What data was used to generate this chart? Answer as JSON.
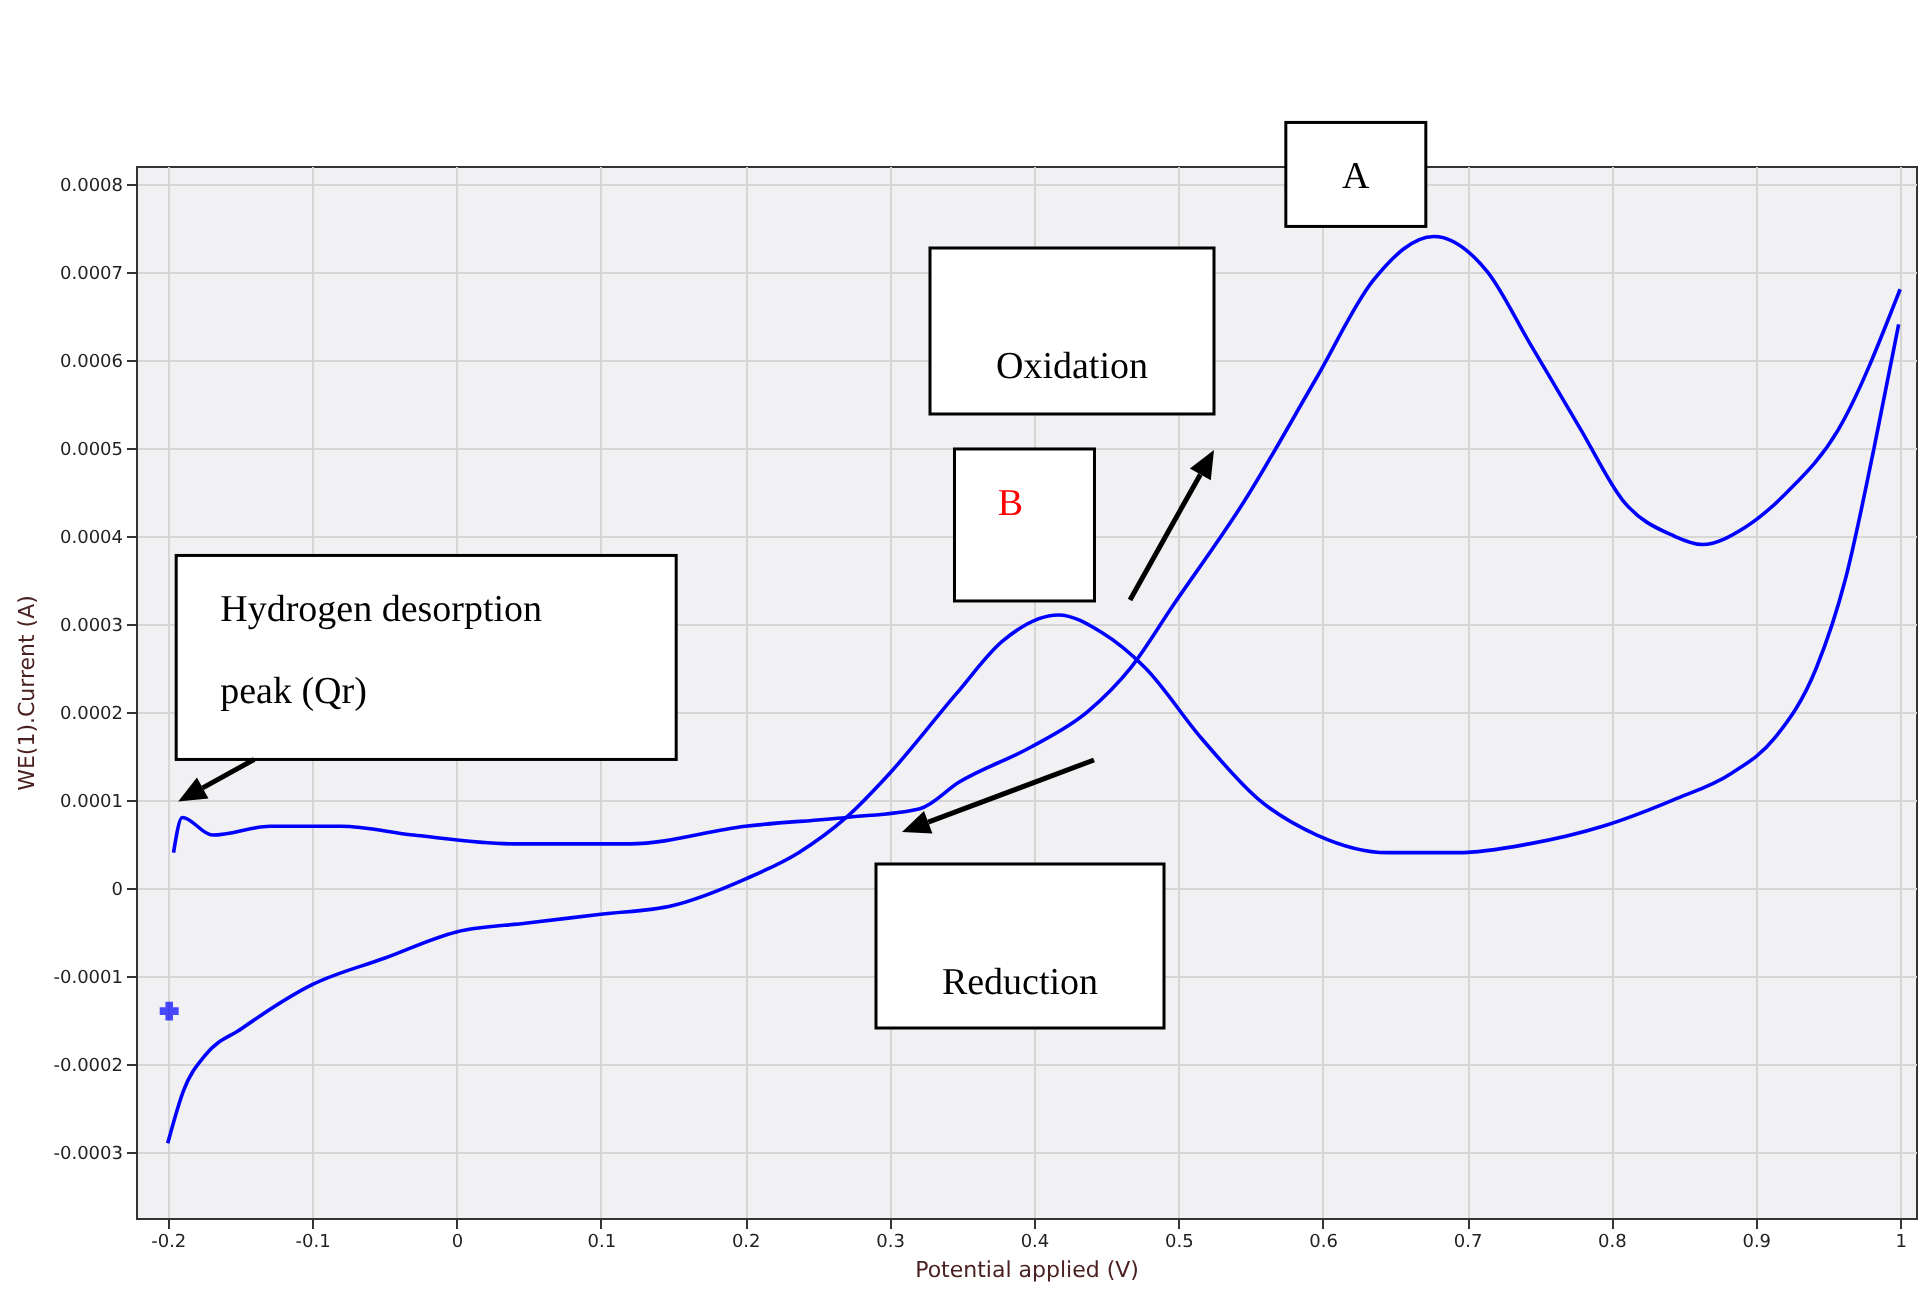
{
  "chart_data": {
    "type": "line",
    "xlabel": "Potential applied (V)",
    "ylabel": "WE(1).Current (A)",
    "xlim": [
      -0.222,
      1.011
    ],
    "ylim": [
      -0.000375,
      0.00082
    ],
    "xticks": [
      -0.2,
      -0.1,
      0,
      0.1,
      0.2,
      0.3,
      0.4,
      0.5,
      0.6,
      0.7,
      0.8,
      0.9,
      1
    ],
    "yticks": [
      -0.0003,
      -0.0002,
      -0.0001,
      0,
      0.0001,
      0.0002,
      0.0003,
      0.0004,
      0.0005,
      0.0006,
      0.0007,
      0.0008
    ],
    "grid": true,
    "series": [
      {
        "color": "#0000ff",
        "x": [
          -0.196,
          -0.19,
          -0.169,
          -0.129,
          -0.08,
          -0.03,
          0.039,
          0.12,
          0.2,
          0.27,
          0.321,
          0.348,
          0.398,
          0.437,
          0.467,
          0.496,
          0.546,
          0.596,
          0.635,
          0.677,
          0.714,
          0.743,
          0.779,
          0.808,
          0.843,
          0.863,
          0.893,
          0.922,
          0.957,
          1.0
        ],
        "values": [
          4e-05,
          8e-05,
          6e-05,
          7e-05,
          7e-05,
          6e-05,
          5e-05,
          5e-05,
          7e-05,
          8e-05,
          9e-05,
          0.00012,
          0.00016,
          0.0002,
          0.00025,
          0.00032,
          0.00044,
          0.00058,
          0.00069,
          0.00074,
          0.0007,
          0.00062,
          0.00052,
          0.00044,
          0.0004,
          0.00039,
          0.00041,
          0.00045,
          0.00052,
          0.00068
        ]
      },
      {
        "color": "#0000ff",
        "x": [
          -0.2,
          -0.189,
          -0.174,
          -0.149,
          -0.1,
          -0.05,
          0,
          0.049,
          0.1,
          0.15,
          0.2,
          0.237,
          0.27,
          0.3,
          0.346,
          0.378,
          0.417,
          0.447,
          0.477,
          0.516,
          0.556,
          0.596,
          0.645,
          0.694,
          0.743,
          0.794,
          0.843,
          0.883,
          0.913,
          0.942,
          0.962,
          0.982,
          0.999
        ],
        "values": [
          -0.00029,
          -0.00023,
          -0.00019,
          -0.00016,
          -0.00011,
          -8e-05,
          -5e-05,
          -4e-05,
          -3e-05,
          -2e-05,
          1e-05,
          4e-05,
          8e-05,
          0.00013,
          0.00022,
          0.00028,
          0.00031,
          0.00029,
          0.00025,
          0.00017,
          0.0001,
          6e-05,
          4e-05,
          4e-05,
          5e-05,
          7e-05,
          0.0001,
          0.00013,
          0.00017,
          0.00025,
          0.00035,
          0.0005,
          0.00064
        ]
      },
      {
        "type": "scatter",
        "marker": "cross",
        "color": "#0000ff",
        "x": [
          -0.199
        ],
        "values": [
          -0.00014
        ]
      }
    ],
    "annotations": [
      {
        "text": "A",
        "x": 0.677,
        "y": 0.00074
      },
      "Oxidation",
      {
        "text": "B",
        "x": 0.417,
        "y": 0.00031
      },
      {
        "text": "Hydrogen desorption peak (Qr)",
        "x": -0.19,
        "y": 8e-05
      },
      "Reduction"
    ]
  }
}
